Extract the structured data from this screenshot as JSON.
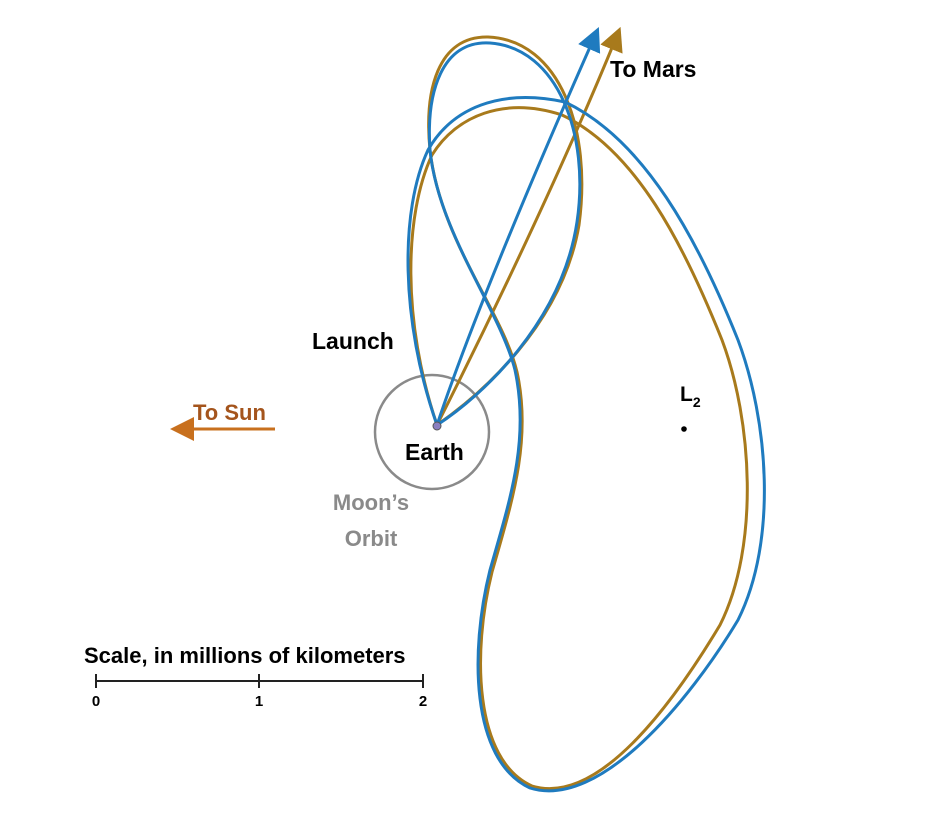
{
  "labels": {
    "to_mars": "To Mars",
    "launch": "Launch",
    "to_sun": "To Sun",
    "earth": "Earth",
    "moons_orbit_line1": "Moon’s",
    "moons_orbit_line2": "Orbit",
    "l2_main": "L",
    "l2_sub": "2"
  },
  "scale": {
    "title": "Scale, in millions of kilometers",
    "ticks": [
      "0",
      "1",
      "2"
    ]
  },
  "colors": {
    "trajectory_blue": "#1f7bbf",
    "trajectory_gold": "#a87a1c",
    "sun_arrow": "#c8701e",
    "sun_text": "#a4541c",
    "moon_orbit": "#8a8a8a"
  }
}
